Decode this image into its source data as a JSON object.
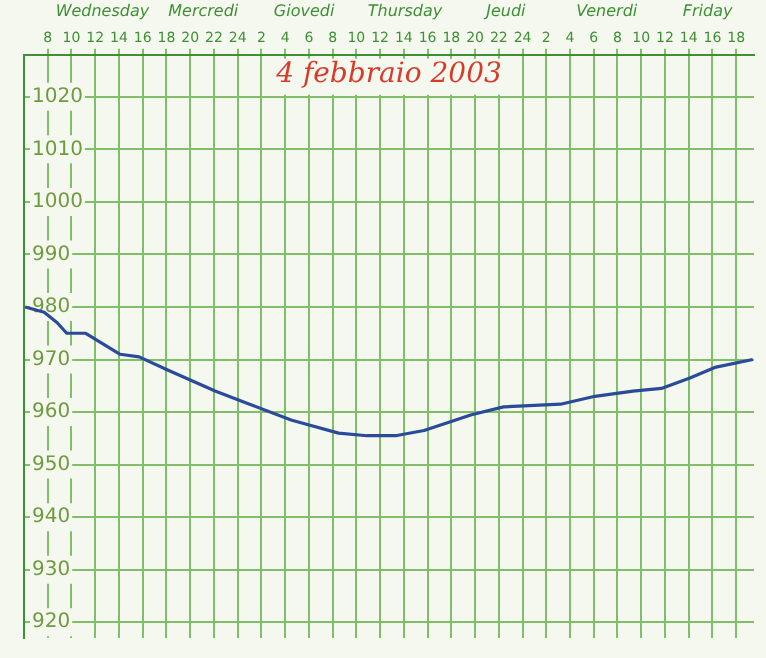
{
  "chart_data": {
    "type": "line",
    "annotations": [
      "4 febbraio 2003",
      "Wednesday",
      "Mercredi",
      "Giovedi",
      "Thursday",
      "Jeudi",
      "Venerdi",
      "Friday"
    ],
    "x": [
      "2003-02-05T06:06",
      "2003-02-05T07:42",
      "2003-02-05T08:48",
      "2003-02-05T09:36",
      "2003-02-05T11:12",
      "2003-02-05T14:06",
      "2003-02-05T15:42",
      "2003-02-05T18:06",
      "2003-02-05T22:06",
      "2003-02-06T01:00",
      "2003-02-06T04:30",
      "2003-02-06T08:30",
      "2003-02-06T10:54",
      "2003-02-06T13:18",
      "2003-02-06T15:42",
      "2003-02-06T19:42",
      "2003-02-06T22:24",
      "2003-02-07T03:12",
      "2003-02-07T06:06",
      "2003-02-07T09:18",
      "2003-02-07T11:42",
      "2003-02-07T14:06",
      "2003-02-07T16:12",
      "2003-02-07T19:24"
    ],
    "series": [
      {
        "color": "#2b4a9a",
        "values": [
          980,
          979,
          977,
          975,
          975,
          971,
          970.5,
          968,
          964,
          961.5,
          958.5,
          956,
          955.5,
          955.5,
          956.5,
          959.5,
          961,
          961.5,
          963,
          964,
          964.5,
          966.5,
          968.5,
          970
        ]
      }
    ],
    "xlim": [
      "2003-02-05T06:00",
      "2003-02-07T19:30"
    ],
    "xticks": [
      {
        "value": "2003-02-05T08:00",
        "label": "8"
      },
      {
        "value": "2003-02-05T10:00",
        "label": "10"
      },
      {
        "value": "2003-02-05T12:00",
        "label": "12"
      },
      {
        "value": "2003-02-05T14:00",
        "label": "14"
      },
      {
        "value": "2003-02-05T16:00",
        "label": "16"
      },
      {
        "value": "2003-02-05T18:00",
        "label": "18"
      },
      {
        "value": "2003-02-05T20:00",
        "label": "20"
      },
      {
        "value": "2003-02-05T22:00",
        "label": "22"
      },
      {
        "value": "2003-02-06T00:00",
        "label": "24"
      },
      {
        "value": "2003-02-06T02:00",
        "label": "2"
      },
      {
        "value": "2003-02-06T04:00",
        "label": "4"
      },
      {
        "value": "2003-02-06T06:00",
        "label": "6"
      },
      {
        "value": "2003-02-06T08:00",
        "label": "8"
      },
      {
        "value": "2003-02-06T10:00",
        "label": "10"
      },
      {
        "value": "2003-02-06T12:00",
        "label": "12"
      },
      {
        "value": "2003-02-06T14:00",
        "label": "14"
      },
      {
        "value": "2003-02-06T16:00",
        "label": "16"
      },
      {
        "value": "2003-02-06T18:00",
        "label": "18"
      },
      {
        "value": "2003-02-06T20:00",
        "label": "20"
      },
      {
        "value": "2003-02-06T22:00",
        "label": "22"
      },
      {
        "value": "2003-02-07T00:00",
        "label": "24"
      },
      {
        "value": "2003-02-07T02:00",
        "label": "2"
      },
      {
        "value": "2003-02-07T04:00",
        "label": "4"
      },
      {
        "value": "2003-02-07T06:00",
        "label": "6"
      },
      {
        "value": "2003-02-07T08:00",
        "label": "8"
      },
      {
        "value": "2003-02-07T10:00",
        "label": "10"
      },
      {
        "value": "2003-02-07T12:00",
        "label": "12"
      },
      {
        "value": "2003-02-07T14:00",
        "label": "14"
      },
      {
        "value": "2003-02-07T16:00",
        "label": "16"
      },
      {
        "value": "2003-02-07T18:00",
        "label": "18"
      }
    ],
    "ylim": [
      917,
      1028
    ],
    "yticks": [
      920,
      930,
      940,
      950,
      960,
      970,
      980,
      990,
      1000,
      1010,
      1020
    ],
    "grid": true,
    "legend": false,
    "marker": "none",
    "line_style": "solid"
  }
}
